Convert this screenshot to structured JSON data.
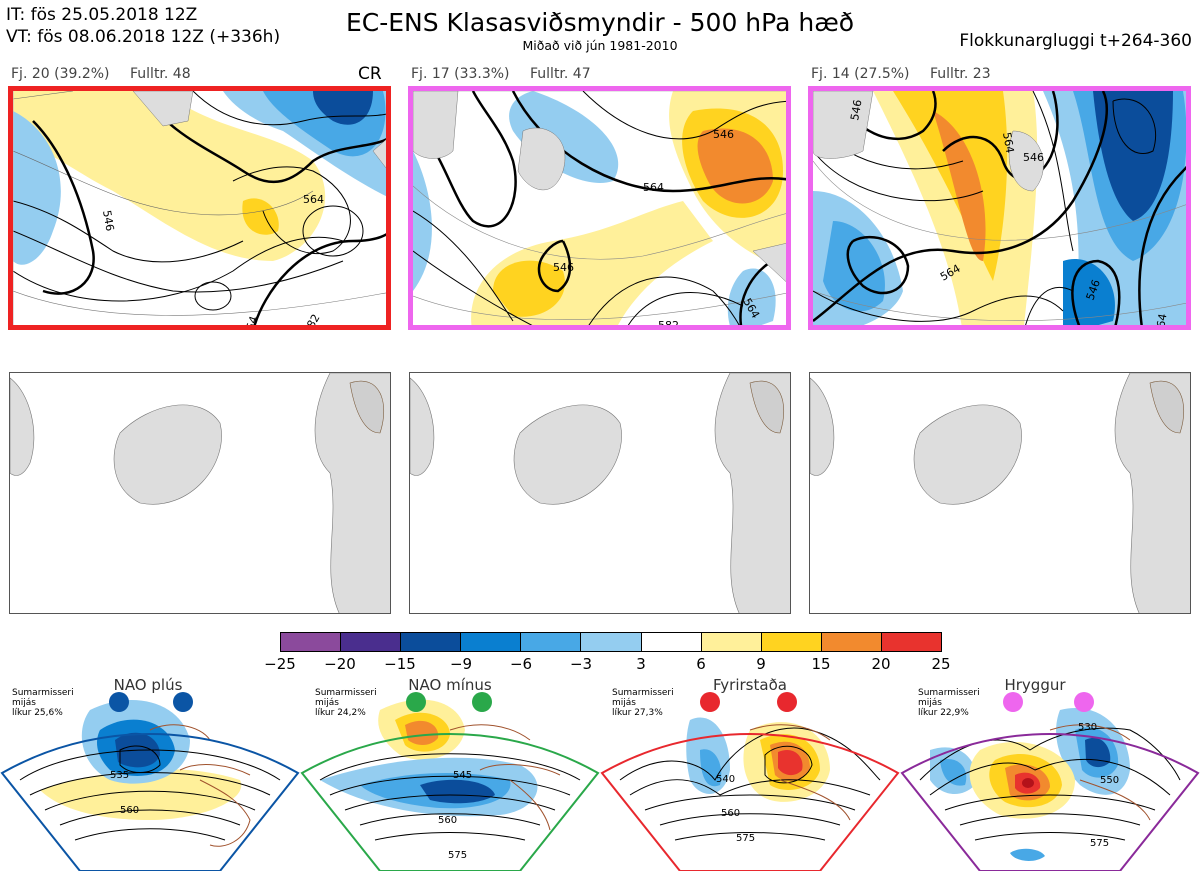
{
  "header": {
    "it": "IT: fös 25.05.2018 12Z",
    "vt": "VT: fös 08.06.2018 12Z  (+336h)",
    "title": "EC-ENS Klasasviðsmyndir - 500 hPa hæð",
    "subtitle": "Miðað við jún 1981-2010",
    "window": "Flokkunargluggi t+264-360"
  },
  "clusters": [
    {
      "label": "Fj. 20 (39.2%)",
      "rep": "Fulltr. 48",
      "tag": "CR",
      "frame_color": "#ee2222",
      "contours": [
        "546",
        "564",
        "54",
        "82"
      ]
    },
    {
      "label": "Fj. 17 (33.3%)",
      "rep": "Fulltr. 47",
      "tag": "",
      "frame_color": "#ee66ee",
      "contours": [
        "546",
        "564",
        "546",
        "564",
        "582"
      ]
    },
    {
      "label": "Fj. 14 (27.5%)",
      "rep": "Fulltr. 23",
      "tag": "",
      "frame_color": "#ee66ee",
      "contours": [
        "546",
        "564",
        "546",
        "564",
        "546",
        "564"
      ]
    }
  ],
  "colorbar": {
    "ticks": [
      "−25",
      "−20",
      "−15",
      "−9",
      "−6",
      "−3",
      "3",
      "6",
      "9",
      "15",
      "20",
      "25"
    ],
    "colors": [
      "#8b4a9c",
      "#4a2e8e",
      "#0b4d9b",
      "#0a7fd0",
      "#48a8e6",
      "#94cdf0",
      "#ffffff",
      "#fff09a",
      "#ffd320",
      "#f28a2e",
      "#e8332e",
      "#b3121a"
    ]
  },
  "regimes": [
    {
      "name": "NAO plús",
      "stat1": "Sumarmisseri",
      "stat2": "mijás",
      "stat3": "líkur 25,6%",
      "color": "#0b55a5",
      "labels": [
        "535",
        "560"
      ]
    },
    {
      "name": "NAO mínus",
      "stat1": "Sumarmisseri",
      "stat2": "mijás",
      "stat3": "líkur 24,2%",
      "color": "#2aa84a",
      "labels": [
        "545",
        "560",
        "575"
      ]
    },
    {
      "name": "Fyrirstaða",
      "stat1": "Sumarmisseri",
      "stat2": "mijás",
      "stat3": "líkur 27,3%",
      "color": "#e8282e",
      "labels": [
        "540",
        "560",
        "575"
      ]
    },
    {
      "name": "Hryggur",
      "stat1": "Sumarmisseri",
      "stat2": "mijás",
      "stat3": "líkur 22,9%",
      "color": "#8a2a9a",
      "labels": [
        "530",
        "550",
        "575"
      ]
    }
  ]
}
